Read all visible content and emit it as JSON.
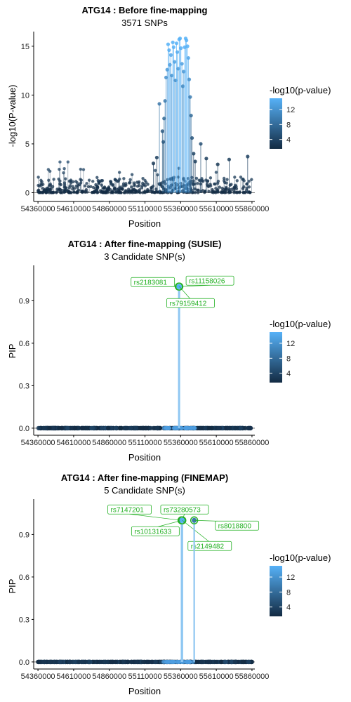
{
  "chart_data": [
    {
      "type": "scatter",
      "title": "ATG14 : Before fine-mapping",
      "subtitle": "3571 SNPs",
      "xlabel": "Position",
      "ylabel": "-log10(P-value)",
      "xlim": [
        54330000,
        55880000
      ],
      "ylim": [
        -0.9,
        16.5
      ],
      "x_ticks": [
        {
          "value": 54360000,
          "label": "54360000"
        },
        {
          "value": 54610000,
          "label": "54610000"
        },
        {
          "value": 54860000,
          "label": "54860000"
        },
        {
          "value": 55110000,
          "label": "55110000"
        },
        {
          "value": 55360000,
          "label": "55360000"
        },
        {
          "value": 55610000,
          "label": "55610000"
        },
        {
          "value": 55860000,
          "label": "55860000"
        }
      ],
      "y_ticks": [
        {
          "value": 0,
          "label": "0"
        },
        {
          "value": 5,
          "label": "5"
        },
        {
          "value": 10,
          "label": "10"
        },
        {
          "value": 15,
          "label": "15"
        }
      ],
      "legend": {
        "title": "-log10(p-value)",
        "ticks": [
          "12",
          "8",
          "4"
        ],
        "tick_values": [
          12,
          8,
          4
        ],
        "range": [
          1.5,
          15
        ]
      },
      "peak_points": [
        [
          55239000,
          5.2
        ],
        [
          55244000,
          7.6
        ],
        [
          55251000,
          9.4
        ],
        [
          55258000,
          11.8
        ],
        [
          55266000,
          12.6
        ],
        [
          55272000,
          15.2
        ],
        [
          55279000,
          14.6
        ],
        [
          55285000,
          13.1
        ],
        [
          55292000,
          14.1
        ],
        [
          55298000,
          12.0
        ],
        [
          55305000,
          15.4
        ],
        [
          55311000,
          14.9
        ],
        [
          55318000,
          13.4
        ],
        [
          55324000,
          11.5
        ],
        [
          55331000,
          15.3
        ],
        [
          55337000,
          14.4
        ],
        [
          55343000,
          12.7
        ],
        [
          55350000,
          15.7
        ],
        [
          55356000,
          15.8
        ],
        [
          55362000,
          14.8
        ],
        [
          55369000,
          13.2
        ],
        [
          55375000,
          10.9
        ],
        [
          55382000,
          12.4
        ],
        [
          55388000,
          14.9
        ],
        [
          55395000,
          15.8
        ],
        [
          55401000,
          15.6
        ],
        [
          55408000,
          15.0
        ],
        [
          55414000,
          13.8
        ],
        [
          55420000,
          11.6
        ],
        [
          55427000,
          9.8
        ],
        [
          55433000,
          7.9
        ],
        [
          55440000,
          5.6
        ],
        [
          55211000,
          9.1
        ],
        [
          55232000,
          6.3
        ],
        [
          55451000,
          4.0
        ],
        [
          55462000,
          3.2
        ],
        [
          55501000,
          5.0
        ],
        [
          55193000,
          3.6
        ],
        [
          55169000,
          3.0
        ],
        [
          55540000,
          3.5
        ],
        [
          55620000,
          2.9
        ],
        [
          55700000,
          3.4
        ],
        [
          55830000,
          3.7
        ]
      ],
      "background_rng_seed": 101,
      "background_mode": "baseline"
    },
    {
      "type": "scatter",
      "title": "ATG14 : After fine-mapping (SUSIE)",
      "subtitle": "3 Candidate SNP(s)",
      "xlabel": "Position",
      "ylabel": "PIP",
      "xlim": [
        54330000,
        55880000
      ],
      "ylim": [
        -0.05,
        1.15
      ],
      "x_ticks": [
        {
          "value": 54360000,
          "label": "54360000"
        },
        {
          "value": 54610000,
          "label": "54610000"
        },
        {
          "value": 54860000,
          "label": "54860000"
        },
        {
          "value": 55110000,
          "label": "55110000"
        },
        {
          "value": 55360000,
          "label": "55360000"
        },
        {
          "value": 55610000,
          "label": "55610000"
        },
        {
          "value": 55860000,
          "label": "55860000"
        }
      ],
      "y_ticks": [
        {
          "value": 0,
          "label": "0.0"
        },
        {
          "value": 0.3,
          "label": "0.3"
        },
        {
          "value": 0.6,
          "label": "0.6"
        },
        {
          "value": 0.9,
          "label": "0.9"
        }
      ],
      "legend": {
        "title": "-log10(p-value)",
        "ticks": [
          "12",
          "8",
          "4"
        ],
        "tick_values": [
          12,
          8,
          4
        ],
        "range": [
          1.5,
          15
        ]
      },
      "candidates": [
        {
          "name": "rs2183081",
          "x": 55347000,
          "pip": 1.0,
          "logp": 15.2
        },
        {
          "name": "rs11158026",
          "x": 55349000,
          "pip": 1.0,
          "logp": 15.6
        },
        {
          "name": "rs79159412",
          "x": 55351000,
          "pip": 1.0,
          "logp": 15.4
        }
      ],
      "background_rng_seed": 202,
      "background_mode": "zero"
    },
    {
      "type": "scatter",
      "title": "ATG14 : After fine-mapping (FINEMAP)",
      "subtitle": "5 Candidate SNP(s)",
      "xlabel": "Position",
      "ylabel": "PIP",
      "xlim": [
        54330000,
        55880000
      ],
      "ylim": [
        -0.05,
        1.15
      ],
      "x_ticks": [
        {
          "value": 54360000,
          "label": "54360000"
        },
        {
          "value": 54610000,
          "label": "54610000"
        },
        {
          "value": 54860000,
          "label": "54860000"
        },
        {
          "value": 55110000,
          "label": "55110000"
        },
        {
          "value": 55360000,
          "label": "55360000"
        },
        {
          "value": 55610000,
          "label": "55610000"
        },
        {
          "value": 55860000,
          "label": "55860000"
        }
      ],
      "y_ticks": [
        {
          "value": 0,
          "label": "0.0"
        },
        {
          "value": 0.3,
          "label": "0.3"
        },
        {
          "value": 0.6,
          "label": "0.6"
        },
        {
          "value": 0.9,
          "label": "0.9"
        }
      ],
      "legend": {
        "title": "-log10(p-value)",
        "ticks": [
          "12",
          "8",
          "4"
        ],
        "tick_values": [
          12,
          8,
          4
        ],
        "range": [
          1.5,
          15
        ]
      },
      "candidates": [
        {
          "name": "rs7147201",
          "x": 55366000,
          "pip": 1.0,
          "logp": 15.0
        },
        {
          "name": "rs73280573",
          "x": 55368000,
          "pip": 1.0,
          "logp": 14.6
        },
        {
          "name": "rs10131633",
          "x": 55370000,
          "pip": 1.0,
          "logp": 15.3
        },
        {
          "name": "rs2149482",
          "x": 55372000,
          "pip": 1.0,
          "logp": 14.8
        },
        {
          "name": "rs8018800",
          "x": 55455000,
          "pip": 1.0,
          "logp": 9.5
        }
      ],
      "background_rng_seed": 303,
      "background_mode": "zero"
    }
  ]
}
